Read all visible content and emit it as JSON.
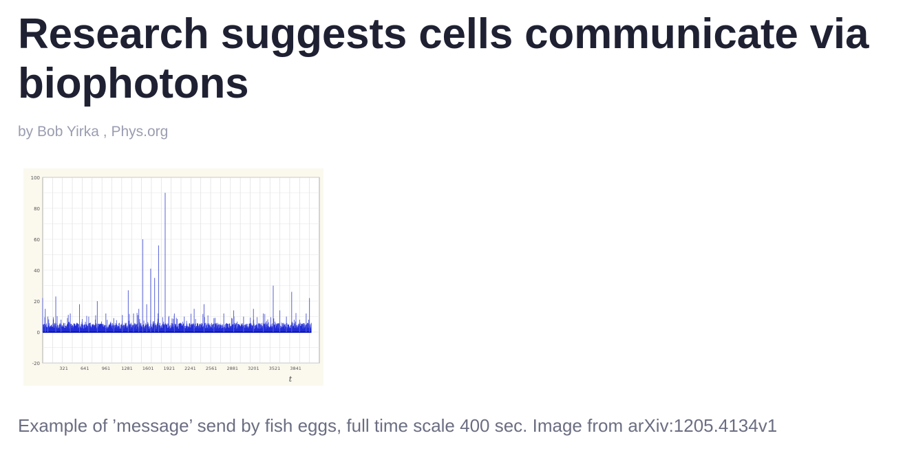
{
  "article": {
    "headline": "Research suggests cells communicate via biophotons",
    "byline": {
      "prefix": "by",
      "author": "Bob Yirka",
      "separator": ",",
      "source": "Phys.org"
    },
    "caption": "Example of ’message’ send by fish eggs, full time scale 400 sec. Image from arXiv:1205.4134v1"
  },
  "chart_data": {
    "type": "line",
    "title": "",
    "xlabel": "t",
    "ylabel": "",
    "ylim": [
      -20,
      100
    ],
    "xlim": [
      1,
      4200
    ],
    "y_ticks": [
      -20,
      0,
      20,
      40,
      60,
      80,
      100
    ],
    "x_ticks": [
      321,
      641,
      961,
      1281,
      1601,
      1921,
      2241,
      2561,
      2881,
      3201,
      3521,
      3841
    ],
    "grid": true,
    "series": [
      {
        "color": "#1f2ad6",
        "x": [
          1,
          40,
          80,
          200,
          280,
          420,
          560,
          700,
          830,
          960,
          1080,
          1210,
          1300,
          1380,
          1460,
          1520,
          1580,
          1640,
          1700,
          1760,
          1860,
          2000,
          2150,
          2300,
          2450,
          2600,
          2750,
          2900,
          3050,
          3200,
          3350,
          3500,
          3600,
          3700,
          3780,
          3900,
          4000,
          4050
        ],
        "y": [
          22,
          15,
          10,
          23,
          8,
          12,
          18,
          10,
          20,
          12,
          9,
          11,
          27,
          12,
          15,
          60,
          18,
          41,
          35,
          56,
          90,
          12,
          10,
          15,
          18,
          9,
          12,
          14,
          10,
          15,
          12,
          30,
          14,
          10,
          26,
          8,
          12,
          22
        ]
      }
    ]
  }
}
